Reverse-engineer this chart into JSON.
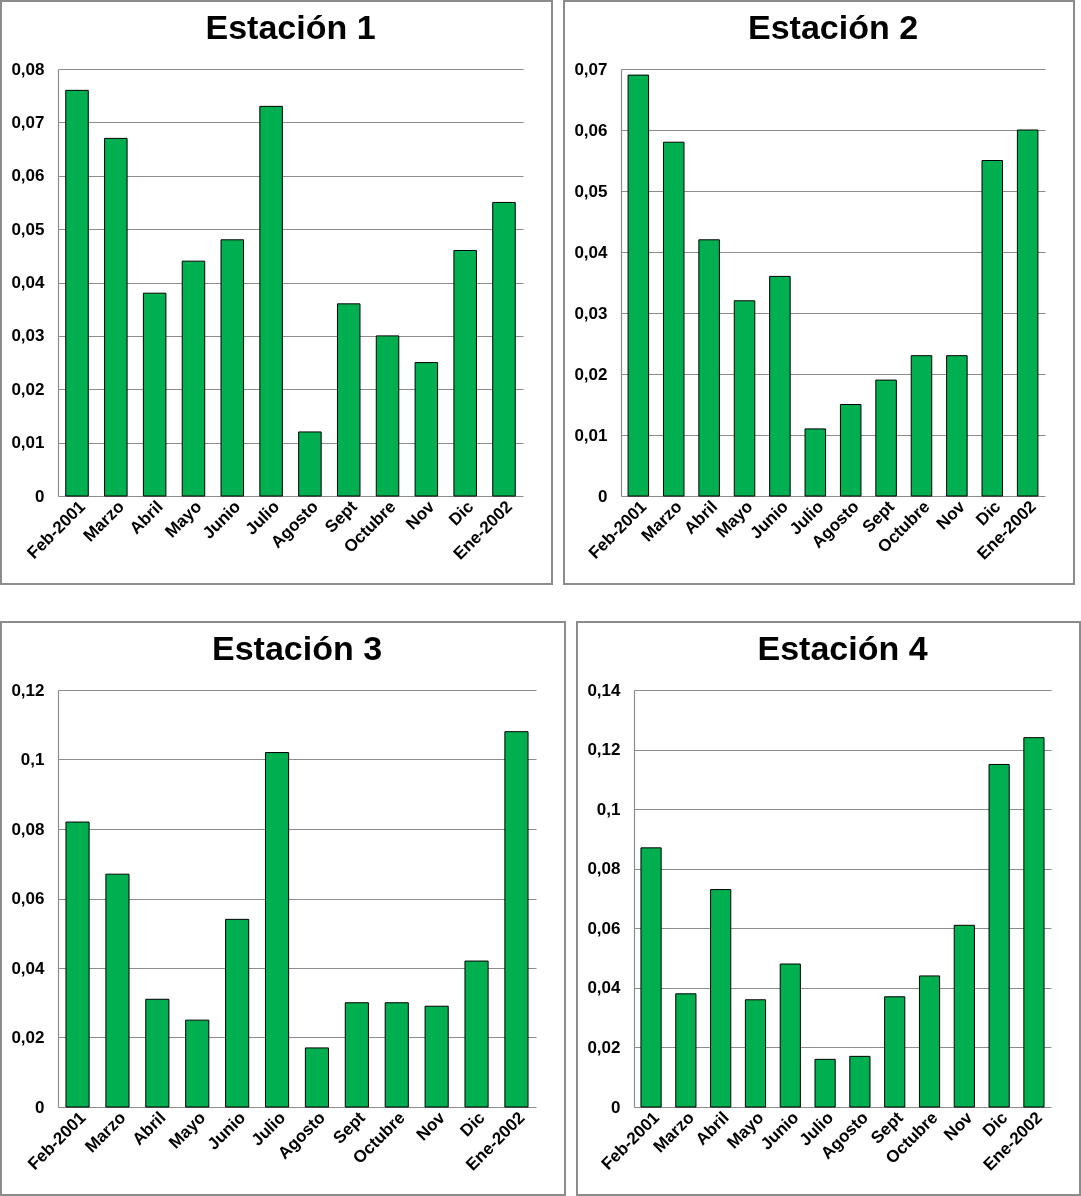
{
  "chart_data": [
    {
      "type": "bar",
      "title": "Estación 1",
      "categories": [
        "Feb-2001",
        "Marzo",
        "Abril",
        "Mayo",
        "Junio",
        "Julio",
        "Agosto",
        "Sept",
        "Octubre",
        "Nov",
        "Dic",
        "Ene-2002"
      ],
      "values": [
        0.076,
        0.067,
        0.038,
        0.044,
        0.048,
        0.073,
        0.012,
        0.036,
        0.03,
        0.025,
        0.046,
        0.055
      ],
      "color": "#00b050",
      "ylim": [
        0,
        0.08
      ],
      "yticks": [
        {
          "value": 0,
          "label": "0"
        },
        {
          "value": 0.01,
          "label": "0,01"
        },
        {
          "value": 0.02,
          "label": "0,02"
        },
        {
          "value": 0.03,
          "label": "0,03"
        },
        {
          "value": 0.04,
          "label": "0,04"
        },
        {
          "value": 0.05,
          "label": "0,05"
        },
        {
          "value": 0.06,
          "label": "0,06"
        },
        {
          "value": 0.07,
          "label": "0,07"
        },
        {
          "value": 0.08,
          "label": "0,08"
        }
      ],
      "grid": "y"
    },
    {
      "type": "bar",
      "title": "Estación 2",
      "categories": [
        "Feb-2001",
        "Marzo",
        "Abril",
        "Mayo",
        "Junio",
        "Julio",
        "Agosto",
        "Sept",
        "Octubre",
        "Nov",
        "Dic",
        "Ene-2002"
      ],
      "values": [
        0.069,
        0.058,
        0.042,
        0.032,
        0.036,
        0.011,
        0.015,
        0.019,
        0.023,
        0.023,
        0.055,
        0.06
      ],
      "color": "#00b050",
      "ylim": [
        0,
        0.07
      ],
      "yticks": [
        {
          "value": 0,
          "label": "0"
        },
        {
          "value": 0.01,
          "label": "0,01"
        },
        {
          "value": 0.02,
          "label": "0,02"
        },
        {
          "value": 0.03,
          "label": "0,03"
        },
        {
          "value": 0.04,
          "label": "0,04"
        },
        {
          "value": 0.05,
          "label": "0,05"
        },
        {
          "value": 0.06,
          "label": "0,06"
        },
        {
          "value": 0.07,
          "label": "0,07"
        }
      ],
      "grid": "y"
    },
    {
      "type": "bar",
      "title": "Estación 3",
      "categories": [
        "Feb-2001",
        "Marzo",
        "Abril",
        "Mayo",
        "Junio",
        "Julio",
        "Agosto",
        "Sept",
        "Octubre",
        "Nov",
        "Dic",
        "Ene-2002"
      ],
      "values": [
        0.082,
        0.067,
        0.031,
        0.025,
        0.054,
        0.102,
        0.017,
        0.03,
        0.03,
        0.029,
        0.042,
        0.108
      ],
      "color": "#00b050",
      "ylim": [
        0,
        0.12
      ],
      "yticks": [
        {
          "value": 0,
          "label": "0"
        },
        {
          "value": 0.02,
          "label": "0,02"
        },
        {
          "value": 0.04,
          "label": "0,04"
        },
        {
          "value": 0.06,
          "label": "0,06"
        },
        {
          "value": 0.08,
          "label": "0,08"
        },
        {
          "value": 0.1,
          "label": "0,1"
        },
        {
          "value": 0.12,
          "label": "0,12"
        }
      ],
      "grid": "y"
    },
    {
      "type": "bar",
      "title": "Estación 4",
      "categories": [
        "Feb-2001",
        "Marzo",
        "Abril",
        "Mayo",
        "Junio",
        "Julio",
        "Agosto",
        "Sept",
        "Octubre",
        "Nov",
        "Dic",
        "Ene-2002"
      ],
      "values": [
        0.087,
        0.038,
        0.073,
        0.036,
        0.048,
        0.016,
        0.017,
        0.037,
        0.044,
        0.061,
        0.115,
        0.124
      ],
      "color": "#00b050",
      "ylim": [
        0,
        0.14
      ],
      "yticks": [
        {
          "value": 0,
          "label": "0"
        },
        {
          "value": 0.02,
          "label": "0,02"
        },
        {
          "value": 0.04,
          "label": "0,04"
        },
        {
          "value": 0.06,
          "label": "0,06"
        },
        {
          "value": 0.08,
          "label": "0,08"
        },
        {
          "value": 0.1,
          "label": "0,1"
        },
        {
          "value": 0.12,
          "label": "0,12"
        },
        {
          "value": 0.14,
          "label": "0,14"
        }
      ],
      "grid": "y"
    }
  ]
}
